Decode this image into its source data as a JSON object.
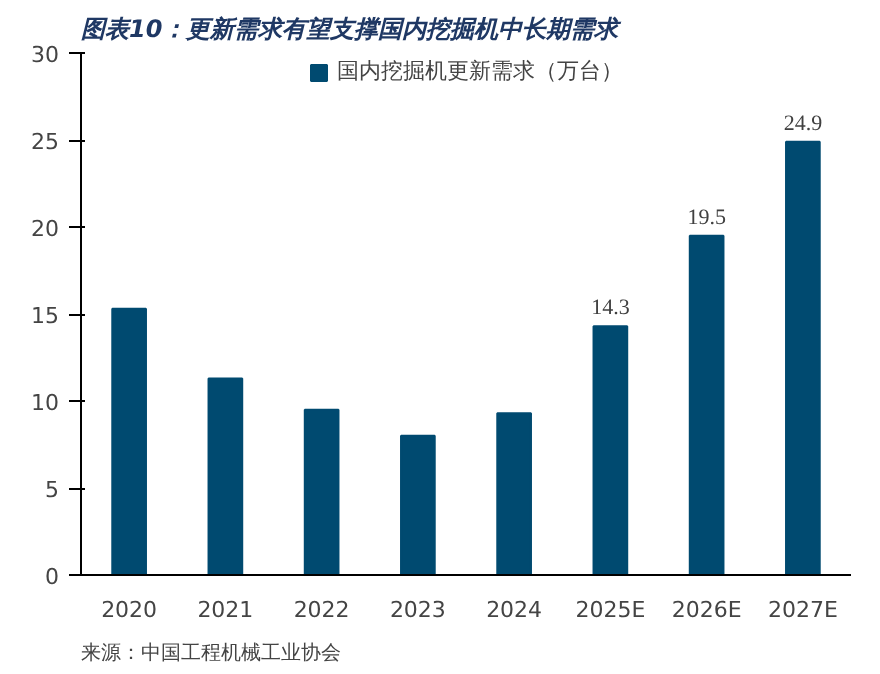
{
  "chart_data": {
    "type": "bar",
    "title": "图表10：更新需求有望支撑国内挖掘机中长期需求",
    "categories": [
      "2020",
      "2021",
      "2022",
      "2023",
      "2024",
      "2025E",
      "2026E",
      "2027E"
    ],
    "series": [
      {
        "name": "国内挖掘机更新需求（万台）",
        "color": "#004a70",
        "values": [
          15.3,
          11.3,
          9.5,
          8.0,
          9.3,
          14.3,
          19.5,
          24.9
        ],
        "value_labels": [
          null,
          null,
          null,
          null,
          null,
          "14.3",
          "19.5",
          "24.9"
        ]
      }
    ],
    "ylim": [
      0,
      30
    ],
    "yticks": [
      0,
      5,
      10,
      15,
      20,
      25,
      30
    ],
    "grid": false,
    "legend": "top",
    "annotations": [
      "来源：中国工程机械工业协会"
    ]
  }
}
